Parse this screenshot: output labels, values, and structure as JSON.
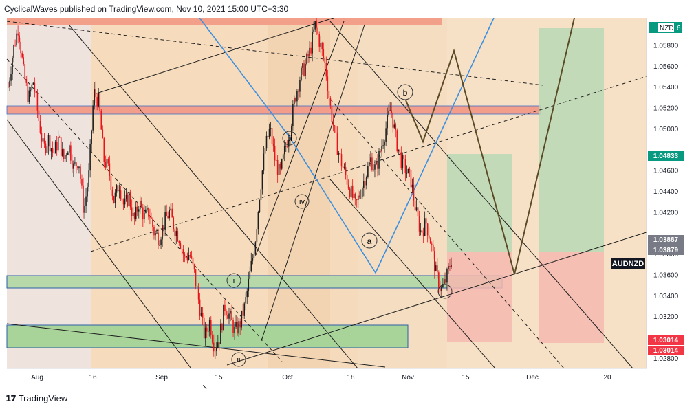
{
  "header": {
    "text": "CyclicalWaves published on TradingView.com, Nov 10, 2021 15:00 UTC+3:30"
  },
  "footer": {
    "logo_icon": "tradingview-logo-icon",
    "brand": "TradingView"
  },
  "chart_data": {
    "type": "candlestick",
    "symbol_label": "AUDNZD",
    "currency_label": "NZD",
    "currency_suffix": "6",
    "y_range": [
      1.027,
      1.0606
    ],
    "y_ticks": [
      "1.05800",
      "1.05600",
      "1.05400",
      "1.05200",
      "1.05000",
      "1.04600",
      "1.04400",
      "1.04200",
      "1.03800",
      "1.03600",
      "1.03400",
      "1.03200",
      "1.02800"
    ],
    "x_ticks": [
      "Aug",
      "16",
      "Sep",
      "15",
      "Oct",
      "18",
      "Nov",
      "15",
      "Dec",
      "20"
    ],
    "price_tags": [
      {
        "label": "1.04833",
        "color": "#089981"
      },
      {
        "label": "1.03887",
        "color": "#787b86"
      },
      {
        "label": "1.03879",
        "color": "#787b86"
      },
      {
        "label": "1.03014",
        "color": "#f23645"
      },
      {
        "label": "1.03014",
        "color": "#f23645"
      }
    ],
    "wave_labels": [
      "iii",
      "iv",
      "i",
      "ii",
      "a",
      "b"
    ],
    "ohlc_path": [
      1.054,
      1.0575,
      1.0598,
      1.0555,
      1.0528,
      1.0545,
      1.051,
      1.048,
      1.049,
      1.0475,
      1.049,
      1.047,
      1.0485,
      1.0462,
      1.047,
      1.042,
      1.0455,
      1.0535,
      1.0525,
      1.047,
      1.046,
      1.043,
      1.0448,
      1.0425,
      1.0435,
      1.041,
      1.043,
      1.0415,
      1.042,
      1.04,
      1.0395,
      1.041,
      1.042,
      1.0405,
      1.0395,
      1.0375,
      1.038,
      1.036,
      1.033,
      1.03,
      1.0315,
      1.029,
      1.03,
      1.033,
      1.032,
      1.0305,
      1.0312,
      1.033,
      1.036,
      1.039,
      1.044,
      1.048,
      1.05,
      1.047,
      1.0455,
      1.048,
      1.05,
      1.053,
      1.055,
      1.056,
      1.0575,
      1.06,
      1.058,
      1.056,
      1.052,
      1.049,
      1.047,
      1.0455,
      1.044,
      1.0425,
      1.044,
      1.0455,
      1.047,
      1.046,
      1.048,
      1.05,
      1.052,
      1.049,
      1.047,
      1.046,
      1.045,
      1.042,
      1.04,
      1.041,
      1.039,
      1.036,
      1.0345,
      1.0355,
      1.0375
    ]
  }
}
